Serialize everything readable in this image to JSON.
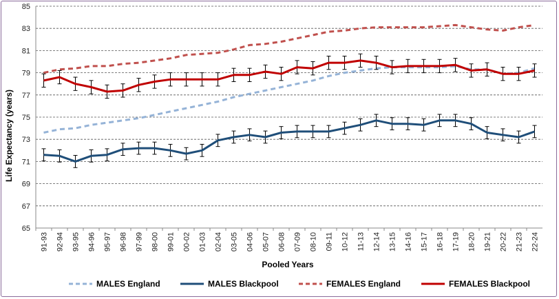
{
  "chart_data": {
    "type": "line",
    "xlabel": "Pooled Years",
    "ylabel": "Life Expectancy (years)",
    "ylim": [
      65,
      85
    ],
    "yticks": [
      65,
      67,
      69,
      71,
      73,
      75,
      77,
      79,
      81,
      83,
      85
    ],
    "grid": "horizontal dashed",
    "legend_position": "bottom",
    "categories": [
      "91-93",
      "92-94",
      "93-95",
      "94-96",
      "95-97",
      "96-98",
      "97-99",
      "98-00",
      "99-01",
      "00-02",
      "01-03",
      "02-04",
      "03-05",
      "04-06",
      "05-07",
      "06-08",
      "07-09",
      "08-10",
      "09-11",
      "10-12",
      "11-13",
      "12-14",
      "13-15",
      "14-16",
      "15-17",
      "16-18",
      "17-19",
      "18-20",
      "19-21",
      "20-22",
      "21-23",
      "22-24"
    ],
    "series": [
      {
        "name": "MALES England",
        "color": "#95b3d7",
        "dashed": true,
        "values": [
          73.6,
          73.9,
          74.0,
          74.3,
          74.5,
          74.7,
          74.9,
          75.2,
          75.5,
          75.8,
          76.1,
          76.4,
          76.8,
          77.1,
          77.4,
          77.7,
          78.0,
          78.3,
          78.7,
          79.0,
          79.2,
          79.4,
          79.5,
          79.5,
          79.5,
          79.5,
          79.6,
          79.3,
          79.3,
          78.9,
          79.0,
          79.4
        ]
      },
      {
        "name": "MALES Blackpool",
        "color": "#1f4e79",
        "dashed": false,
        "error": 0.55,
        "values": [
          71.6,
          71.5,
          71.0,
          71.5,
          71.6,
          72.1,
          72.2,
          72.2,
          72.0,
          71.7,
          72.0,
          72.9,
          73.2,
          73.4,
          73.2,
          73.6,
          73.7,
          73.7,
          73.7,
          74.0,
          74.3,
          74.7,
          74.4,
          74.4,
          74.3,
          74.7,
          74.7,
          74.4,
          73.6,
          73.4,
          73.2,
          73.7
        ]
      },
      {
        "name": "FEMALES England",
        "color": "#c0504d",
        "dashed": true,
        "values": [
          79.0,
          79.3,
          79.4,
          79.6,
          79.6,
          79.8,
          79.9,
          80.1,
          80.3,
          80.6,
          80.7,
          80.8,
          81.1,
          81.5,
          81.6,
          81.8,
          82.1,
          82.4,
          82.7,
          82.8,
          83.0,
          83.1,
          83.1,
          83.1,
          83.1,
          83.2,
          83.3,
          83.1,
          82.9,
          82.8,
          83.1,
          83.3
        ]
      },
      {
        "name": "FEMALES Blackpool",
        "color": "#c00000",
        "dashed": false,
        "error": 0.6,
        "values": [
          78.3,
          78.6,
          78.0,
          77.7,
          77.3,
          77.4,
          77.9,
          78.2,
          78.4,
          78.4,
          78.4,
          78.4,
          78.8,
          78.8,
          79.1,
          78.9,
          79.5,
          79.4,
          79.9,
          79.9,
          80.1,
          79.9,
          79.5,
          79.6,
          79.6,
          79.6,
          79.7,
          79.2,
          79.3,
          78.9,
          78.9,
          79.2
        ]
      }
    ]
  }
}
